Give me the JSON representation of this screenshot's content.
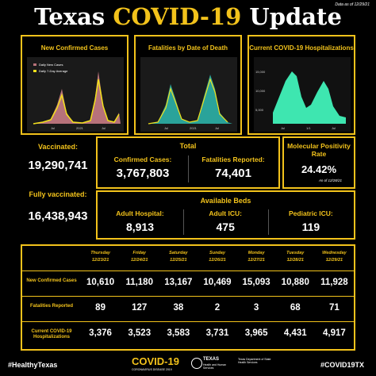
{
  "header": {
    "title_start": "Texas",
    "title_highlight": "COVID-19",
    "title_end": "Update",
    "date_note": "Data as of 12/29/21"
  },
  "panels": [
    {
      "title": "New Confirmed Cases",
      "legend": [
        "Daily New Cases",
        "Daily 7-Day Average"
      ],
      "x_labels": [
        "Jul",
        "2021",
        "Jul"
      ]
    },
    {
      "title": "Fatalities by Date of Death",
      "x_labels": [
        "Jul",
        "2021",
        "Jul"
      ]
    },
    {
      "title": "Current COVID-19 Hospitalizations",
      "y_labels": [
        "15,000",
        "10,000",
        "5,000"
      ],
      "x_labels": [
        "Jul",
        "1/1",
        "Jul"
      ]
    }
  ],
  "vaccination": {
    "vaccinated_label": "Vaccinated:",
    "vaccinated": "19,290,741",
    "fully_label": "Fully vaccinated:",
    "fully": "16,438,943"
  },
  "total": {
    "title": "Total",
    "cases_label": "Confirmed Cases:",
    "cases": "3,767,803",
    "fatalities_label": "Fatalities Reported:",
    "fatalities": "74,401"
  },
  "positivity": {
    "title": "Molecular Positivity Rate",
    "value": "24.42%",
    "note": "As of 12/28/21"
  },
  "beds": {
    "title": "Available Beds",
    "items": [
      {
        "label": "Adult Hospital:",
        "value": "8,913"
      },
      {
        "label": "Adult ICU:",
        "value": "475"
      },
      {
        "label": "Pediatric ICU:",
        "value": "119"
      }
    ]
  },
  "table": {
    "days": [
      {
        "day": "Thursday",
        "date": "12/23/21"
      },
      {
        "day": "Friday",
        "date": "12/24/21"
      },
      {
        "day": "Saturday",
        "date": "12/25/21"
      },
      {
        "day": "Sunday",
        "date": "12/26/21"
      },
      {
        "day": "Monday",
        "date": "12/27/21"
      },
      {
        "day": "Tuesday",
        "date": "12/28/21"
      },
      {
        "day": "Wednesday",
        "date": "12/29/21"
      }
    ],
    "rows": [
      {
        "label": "New Confirmed Cases",
        "values": [
          "10,610",
          "11,180",
          "13,167",
          "10,469",
          "15,093",
          "10,880",
          "11,928"
        ]
      },
      {
        "label": "Fatalities Reported",
        "values": [
          "89",
          "127",
          "38",
          "2",
          "3",
          "68",
          "71"
        ]
      },
      {
        "label": "Current COVID-19 Hospitalizations",
        "values": [
          "3,376",
          "3,523",
          "3,583",
          "3,731",
          "3,965",
          "4,431",
          "4,917"
        ]
      }
    ]
  },
  "footer": {
    "left": "#HealthyTexas",
    "logo": "COVID-19",
    "logo_sub": "CORONAVIRUS DISEASE 2019",
    "hhs": "TEXAS",
    "hhs_sub": "Health and Human Services",
    "dshs": "Texas Department of State Health Services",
    "right": "#COVID19TX"
  }
}
